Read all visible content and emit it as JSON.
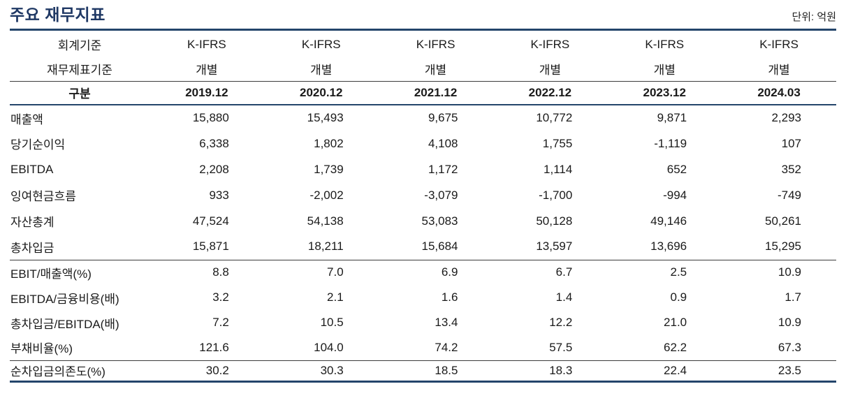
{
  "page": {
    "title": "주요 재무지표",
    "unit_label": "단위: 억원"
  },
  "colors": {
    "accent_navy": "#24456b",
    "title_navy": "#1f3864",
    "rule_dark": "#3c3c3c",
    "text": "#1a1a1a"
  },
  "table": {
    "header": {
      "accounting_standard_label": "회계기준",
      "accounting_standard_values": [
        "K-IFRS",
        "K-IFRS",
        "K-IFRS",
        "K-IFRS",
        "K-IFRS",
        "K-IFRS"
      ],
      "statement_basis_label": "재무제표기준",
      "statement_basis_values": [
        "개별",
        "개별",
        "개별",
        "개별",
        "개별",
        "개별"
      ],
      "period_label": "구분",
      "periods": [
        "2019.12",
        "2020.12",
        "2021.12",
        "2022.12",
        "2023.12",
        "2024.03"
      ]
    },
    "sections": [
      {
        "rows": [
          {
            "label": "매출액",
            "values": [
              "15,880",
              "15,493",
              "9,675",
              "10,772",
              "9,871",
              "2,293"
            ]
          },
          {
            "label": "당기순이익",
            "values": [
              "6,338",
              "1,802",
              "4,108",
              "1,755",
              "-1,119",
              "107"
            ]
          },
          {
            "label": "EBITDA",
            "values": [
              "2,208",
              "1,739",
              "1,172",
              "1,114",
              "652",
              "352"
            ]
          },
          {
            "label": "잉여현금흐름",
            "values": [
              "933",
              "-2,002",
              "-3,079",
              "-1,700",
              "-994",
              "-749"
            ]
          },
          {
            "label": "자산총계",
            "values": [
              "47,524",
              "54,138",
              "53,083",
              "50,128",
              "49,146",
              "50,261"
            ]
          },
          {
            "label": "총차입금",
            "values": [
              "15,871",
              "18,211",
              "15,684",
              "13,597",
              "13,696",
              "15,295"
            ]
          }
        ]
      },
      {
        "rows": [
          {
            "label": "EBIT/매출액(%)",
            "values": [
              "8.8",
              "7.0",
              "6.9",
              "6.7",
              "2.5",
              "10.9"
            ]
          },
          {
            "label": "EBITDA/금융비용(배)",
            "values": [
              "3.2",
              "2.1",
              "1.6",
              "1.4",
              "0.9",
              "1.7"
            ]
          },
          {
            "label": "총차입금/EBITDA(배)",
            "values": [
              "7.2",
              "10.5",
              "13.4",
              "12.2",
              "21.0",
              "10.9"
            ]
          },
          {
            "label": "부채비율(%)",
            "values": [
              "121.6",
              "104.0",
              "74.2",
              "57.5",
              "62.2",
              "67.3"
            ]
          }
        ]
      },
      {
        "rows": [
          {
            "label": "순차입금의존도(%)",
            "values": [
              "30.2",
              "30.3",
              "18.5",
              "18.3",
              "22.4",
              "23.5"
            ]
          }
        ]
      }
    ]
  }
}
